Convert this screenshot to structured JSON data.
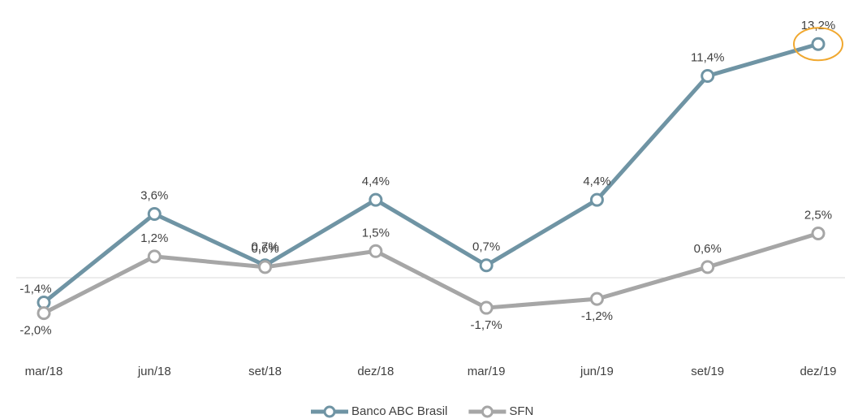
{
  "chart_data": {
    "type": "line",
    "categories": [
      "mar/18",
      "jun/18",
      "set/18",
      "dez/18",
      "mar/19",
      "jun/19",
      "set/19",
      "dez/19"
    ],
    "series": [
      {
        "name": "Banco ABC Brasil",
        "color": "#6f94a4",
        "values": [
          -1.4,
          3.6,
          0.7,
          4.4,
          0.7,
          4.4,
          11.4,
          13.2
        ],
        "value_labels": [
          "-1,4%",
          "3,6%",
          "0,7%",
          "4,4%",
          "0,7%",
          "4,4%",
          "11,4%",
          "13,2%"
        ]
      },
      {
        "name": "SFN",
        "color": "#a6a6a6",
        "values": [
          -2.0,
          1.2,
          0.6,
          1.5,
          -1.7,
          -1.2,
          0.6,
          2.5
        ],
        "value_labels": [
          "-2,0%",
          "1,2%",
          "0,6%",
          "1,5%",
          "-1,7%",
          "-1,2%",
          "0,6%",
          "2,5%"
        ]
      }
    ],
    "ylim": [
      -3.5,
      14.5
    ],
    "legend": "bottom"
  }
}
